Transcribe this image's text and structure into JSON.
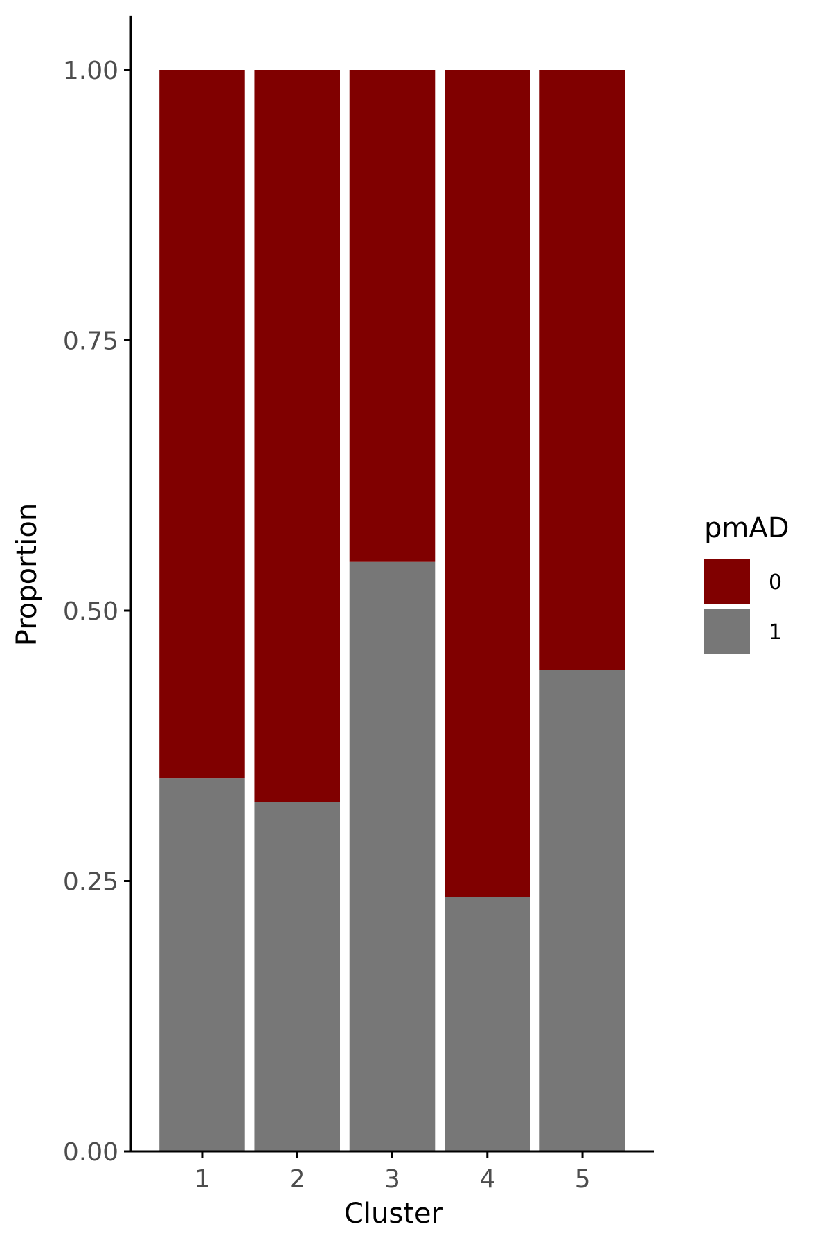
{
  "chart_data": {
    "type": "bar",
    "stacked": true,
    "categories": [
      "1",
      "2",
      "3",
      "4",
      "5"
    ],
    "series": [
      {
        "name": "1",
        "color": "#777777",
        "values": [
          0.345,
          0.323,
          0.545,
          0.235,
          0.445
        ]
      },
      {
        "name": "0",
        "color": "#800000",
        "values": [
          0.655,
          0.677,
          0.455,
          0.765,
          0.555
        ]
      }
    ],
    "xlabel": "Cluster",
    "ylabel": "Proportion",
    "ylim": [
      0,
      1.05
    ],
    "yticks": [
      "0.00",
      "0.25",
      "0.50",
      "0.75",
      "1.00"
    ],
    "ytick_values": [
      0,
      0.25,
      0.5,
      0.75,
      1.0
    ],
    "grid": false,
    "legend": {
      "title": "pmAD",
      "placement": "right",
      "items": [
        {
          "label": "0",
          "color": "#800000"
        },
        {
          "label": "1",
          "color": "#777777"
        }
      ]
    }
  }
}
